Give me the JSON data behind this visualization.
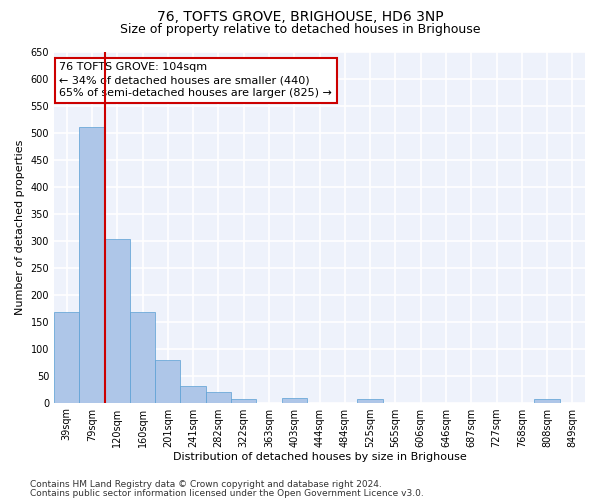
{
  "title": "76, TOFTS GROVE, BRIGHOUSE, HD6 3NP",
  "subtitle": "Size of property relative to detached houses in Brighouse",
  "xlabel": "Distribution of detached houses by size in Brighouse",
  "ylabel": "Number of detached properties",
  "categories": [
    "39sqm",
    "79sqm",
    "120sqm",
    "160sqm",
    "201sqm",
    "241sqm",
    "282sqm",
    "322sqm",
    "363sqm",
    "403sqm",
    "444sqm",
    "484sqm",
    "525sqm",
    "565sqm",
    "606sqm",
    "646sqm",
    "687sqm",
    "727sqm",
    "768sqm",
    "808sqm",
    "849sqm"
  ],
  "values": [
    168,
    510,
    302,
    168,
    78,
    31,
    20,
    7,
    0,
    8,
    0,
    0,
    7,
    0,
    0,
    0,
    0,
    0,
    0,
    7,
    0
  ],
  "bar_color": "#aec6e8",
  "bar_edge_color": "#5a9fd4",
  "red_line_color": "#cc0000",
  "annotation_text": "76 TOFTS GROVE: 104sqm\n← 34% of detached houses are smaller (440)\n65% of semi-detached houses are larger (825) →",
  "annotation_box_color": "#ffffff",
  "annotation_box_edge": "#cc0000",
  "ylim": [
    0,
    650
  ],
  "yticks": [
    0,
    50,
    100,
    150,
    200,
    250,
    300,
    350,
    400,
    450,
    500,
    550,
    600,
    650
  ],
  "background_color": "#eef2fb",
  "grid_color": "#ffffff",
  "footer_line1": "Contains HM Land Registry data © Crown copyright and database right 2024.",
  "footer_line2": "Contains public sector information licensed under the Open Government Licence v3.0.",
  "title_fontsize": 10,
  "subtitle_fontsize": 9,
  "axis_label_fontsize": 8,
  "tick_fontsize": 7,
  "annotation_fontsize": 8,
  "footer_fontsize": 6.5
}
